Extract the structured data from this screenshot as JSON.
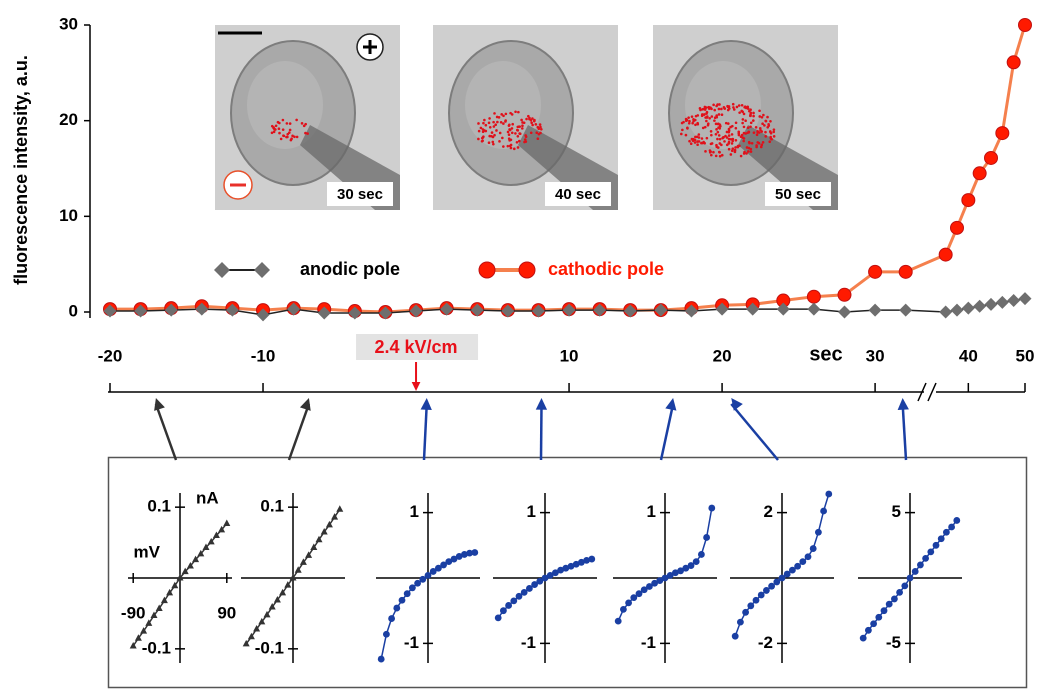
{
  "chart_data": [
    {
      "type": "line",
      "ylabel": "fluorescence intensity, a.u.",
      "xlabel": "sec",
      "x": [
        -20,
        -18,
        -16,
        -14,
        -12,
        -10,
        -8,
        -6,
        -4,
        -2,
        0,
        2,
        4,
        6,
        8,
        10,
        12,
        14,
        16,
        18,
        20,
        22,
        24,
        26,
        28,
        30,
        32,
        36,
        38,
        40,
        42,
        44,
        46,
        48,
        50
      ],
      "xlim": [
        -20,
        50
      ],
      "xbreak": [
        33,
        35
      ],
      "xticks": [
        -20,
        -10,
        10,
        20,
        30,
        40,
        50
      ],
      "ylim": [
        0,
        30
      ],
      "yticks": [
        0,
        10,
        20,
        30
      ],
      "series": [
        {
          "name": "anodic pole",
          "color": "#6e6e6e",
          "line_color": "#222222",
          "marker": "diamond",
          "values": [
            0.1,
            0.1,
            0.2,
            0.3,
            0.2,
            -0.3,
            0.3,
            -0.1,
            -0.1,
            -0.1,
            0.1,
            0.3,
            0.2,
            0.1,
            0.1,
            0.2,
            0.2,
            0.1,
            0.2,
            0.1,
            0.3,
            0.3,
            0.3,
            0.3,
            0.0,
            0.2,
            0.2,
            0.0,
            0.2,
            0.4,
            0.6,
            0.8,
            1.0,
            1.2,
            1.4
          ]
        },
        {
          "name": "cathodic pole",
          "color": "#ff1a00",
          "line_color": "#f5804d",
          "marker": "circle",
          "values": [
            0.3,
            0.3,
            0.4,
            0.6,
            0.4,
            0.2,
            0.4,
            0.3,
            0.1,
            0.0,
            0.2,
            0.4,
            0.3,
            0.2,
            0.2,
            0.3,
            0.3,
            0.2,
            0.2,
            0.4,
            0.7,
            0.8,
            1.2,
            1.6,
            1.8,
            4.2,
            4.2,
            6.0,
            8.8,
            11.7,
            14.5,
            16.1,
            18.7,
            26.1,
            30.0
          ]
        }
      ],
      "annotations": [
        {
          "text": "2.4 kV/cm",
          "x": 0
        }
      ],
      "insets": [
        "30 sec",
        "40 sec",
        "50 sec"
      ]
    },
    {
      "type": "line",
      "time": -17,
      "xlabel": "mV",
      "ylabel": "nA",
      "xlim": [
        -100,
        100
      ],
      "xticks": [
        -90,
        90
      ],
      "ylim": [
        -0.12,
        0.12
      ],
      "yticks": [
        -0.1,
        0.1
      ],
      "x": [
        -90,
        -80,
        -70,
        -60,
        -50,
        -40,
        -30,
        -20,
        -10,
        0,
        10,
        20,
        30,
        40,
        50,
        60,
        70,
        80,
        90
      ],
      "series": [
        {
          "color": "#333333",
          "marker": "triangle",
          "values": [
            -0.096,
            -0.085,
            -0.075,
            -0.064,
            -0.053,
            -0.043,
            -0.032,
            -0.021,
            -0.011,
            0,
            0.009,
            0.017,
            0.026,
            0.034,
            0.043,
            0.051,
            0.06,
            0.068,
            0.077
          ]
        }
      ]
    },
    {
      "type": "line",
      "time": -7,
      "xlim": [
        -100,
        100
      ],
      "ylim": [
        -0.12,
        0.12
      ],
      "yticks": [
        -0.1,
        0.1
      ],
      "x": [
        -90,
        -80,
        -70,
        -60,
        -50,
        -40,
        -30,
        -20,
        -10,
        0,
        10,
        20,
        30,
        40,
        50,
        60,
        70,
        80,
        90
      ],
      "series": [
        {
          "color": "#333333",
          "marker": "triangle",
          "values": [
            -0.093,
            -0.083,
            -0.072,
            -0.062,
            -0.052,
            -0.041,
            -0.031,
            -0.021,
            -0.01,
            0,
            0.011,
            0.022,
            0.032,
            0.043,
            0.054,
            0.065,
            0.075,
            0.086,
            0.097
          ]
        }
      ]
    },
    {
      "type": "line",
      "time": 0.7,
      "xlim": [
        -100,
        100
      ],
      "ylim": [
        -1.3,
        1.3
      ],
      "yticks": [
        -1,
        1
      ],
      "x": [
        -90,
        -80,
        -70,
        -60,
        -50,
        -40,
        -30,
        -20,
        -10,
        0,
        10,
        20,
        30,
        40,
        50,
        60,
        70,
        80,
        90
      ],
      "series": [
        {
          "color": "#1a3fa3",
          "marker": "circle",
          "values": [
            -1.24,
            -0.86,
            -0.62,
            -0.46,
            -0.34,
            -0.24,
            -0.15,
            -0.08,
            -0.02,
            0.04,
            0.1,
            0.15,
            0.2,
            0.25,
            0.29,
            0.33,
            0.36,
            0.38,
            0.39
          ]
        }
      ]
    },
    {
      "type": "line",
      "time": 8.2,
      "xlim": [
        -100,
        100
      ],
      "ylim": [
        -1.3,
        1.3
      ],
      "yticks": [
        -1,
        1
      ],
      "x": [
        -90,
        -80,
        -70,
        -60,
        -50,
        -40,
        -30,
        -20,
        -10,
        0,
        10,
        20,
        30,
        40,
        50,
        60,
        70,
        80,
        90
      ],
      "series": [
        {
          "color": "#1a3fa3",
          "marker": "circle",
          "values": [
            -0.61,
            -0.5,
            -0.42,
            -0.35,
            -0.28,
            -0.22,
            -0.16,
            -0.1,
            -0.05,
            0,
            0.04,
            0.08,
            0.12,
            0.15,
            0.18,
            0.21,
            0.24,
            0.27,
            0.29
          ]
        }
      ]
    },
    {
      "type": "line",
      "time": 16.8,
      "xlim": [
        -100,
        100
      ],
      "ylim": [
        -1.3,
        1.3
      ],
      "yticks": [
        -1,
        1
      ],
      "x": [
        -90,
        -80,
        -70,
        -60,
        -50,
        -40,
        -30,
        -20,
        -10,
        0,
        10,
        20,
        30,
        40,
        50,
        60,
        70,
        80,
        90
      ],
      "series": [
        {
          "color": "#1a3fa3",
          "marker": "circle",
          "values": [
            -0.66,
            -0.48,
            -0.38,
            -0.3,
            -0.24,
            -0.18,
            -0.13,
            -0.08,
            -0.04,
            0,
            0.04,
            0.08,
            0.11,
            0.15,
            0.19,
            0.25,
            0.36,
            0.62,
            1.07
          ]
        }
      ]
    },
    {
      "type": "line",
      "time": 20.6,
      "xlim": [
        -100,
        100
      ],
      "ylim": [
        -2.6,
        2.6
      ],
      "yticks": [
        -2,
        2
      ],
      "x": [
        -90,
        -80,
        -70,
        -60,
        -50,
        -40,
        -30,
        -20,
        -10,
        0,
        10,
        20,
        30,
        40,
        50,
        60,
        70,
        80,
        90
      ],
      "series": [
        {
          "color": "#1a3fa3",
          "marker": "circle",
          "values": [
            -1.78,
            -1.35,
            -1.05,
            -0.85,
            -0.68,
            -0.52,
            -0.38,
            -0.25,
            -0.12,
            0,
            0.12,
            0.24,
            0.36,
            0.5,
            0.65,
            0.9,
            1.4,
            2.05,
            2.57
          ]
        }
      ]
    },
    {
      "type": "line",
      "time": 31.8,
      "xlim": [
        -100,
        100
      ],
      "ylim": [
        -6.5,
        6.5
      ],
      "yticks": [
        -5,
        5
      ],
      "x": [
        -90,
        -80,
        -70,
        -60,
        -50,
        -40,
        -30,
        -20,
        -10,
        0,
        10,
        20,
        30,
        40,
        50,
        60,
        70,
        80,
        90
      ],
      "series": [
        {
          "color": "#1a3fa3",
          "marker": "circle",
          "values": [
            -4.6,
            -4.0,
            -3.5,
            -3.0,
            -2.5,
            -2.0,
            -1.6,
            -1.1,
            -0.6,
            0,
            0.5,
            1.0,
            1.5,
            2.0,
            2.5,
            3.0,
            3.5,
            3.9,
            4.4
          ]
        }
      ]
    }
  ]
}
